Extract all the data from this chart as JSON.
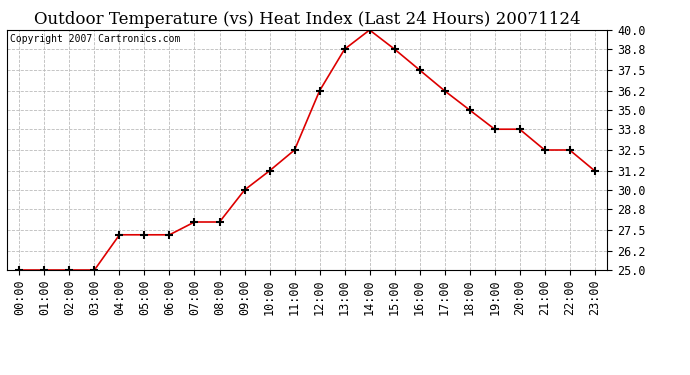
{
  "title": "Outdoor Temperature (vs) Heat Index (Last 24 Hours) 20071124",
  "copyright": "Copyright 2007 Cartronics.com",
  "hours": [
    0,
    1,
    2,
    3,
    4,
    5,
    6,
    7,
    8,
    9,
    10,
    11,
    12,
    13,
    14,
    15,
    16,
    17,
    18,
    19,
    20,
    21,
    22,
    23
  ],
  "x_labels": [
    "00:00",
    "01:00",
    "02:00",
    "03:00",
    "04:00",
    "05:00",
    "06:00",
    "07:00",
    "08:00",
    "09:00",
    "10:00",
    "11:00",
    "12:00",
    "13:00",
    "14:00",
    "15:00",
    "16:00",
    "17:00",
    "18:00",
    "19:00",
    "20:00",
    "21:00",
    "22:00",
    "23:00"
  ],
  "values": [
    25.0,
    25.0,
    25.0,
    25.0,
    27.2,
    27.2,
    27.2,
    28.0,
    28.0,
    30.0,
    31.2,
    32.5,
    36.2,
    38.8,
    40.0,
    38.8,
    37.5,
    36.2,
    35.0,
    33.8,
    33.8,
    32.5,
    32.5,
    31.2
  ],
  "line_color": "#dd0000",
  "marker": "+",
  "marker_color": "#000000",
  "marker_size": 6,
  "bg_color": "#ffffff",
  "grid_color": "#bbbbbb",
  "ylim": [
    25.0,
    40.0
  ],
  "yticks": [
    25.0,
    26.2,
    27.5,
    28.8,
    30.0,
    31.2,
    32.5,
    33.8,
    35.0,
    36.2,
    37.5,
    38.8,
    40.0
  ],
  "title_fontsize": 12,
  "copyright_fontsize": 7,
  "tick_fontsize": 8.5
}
